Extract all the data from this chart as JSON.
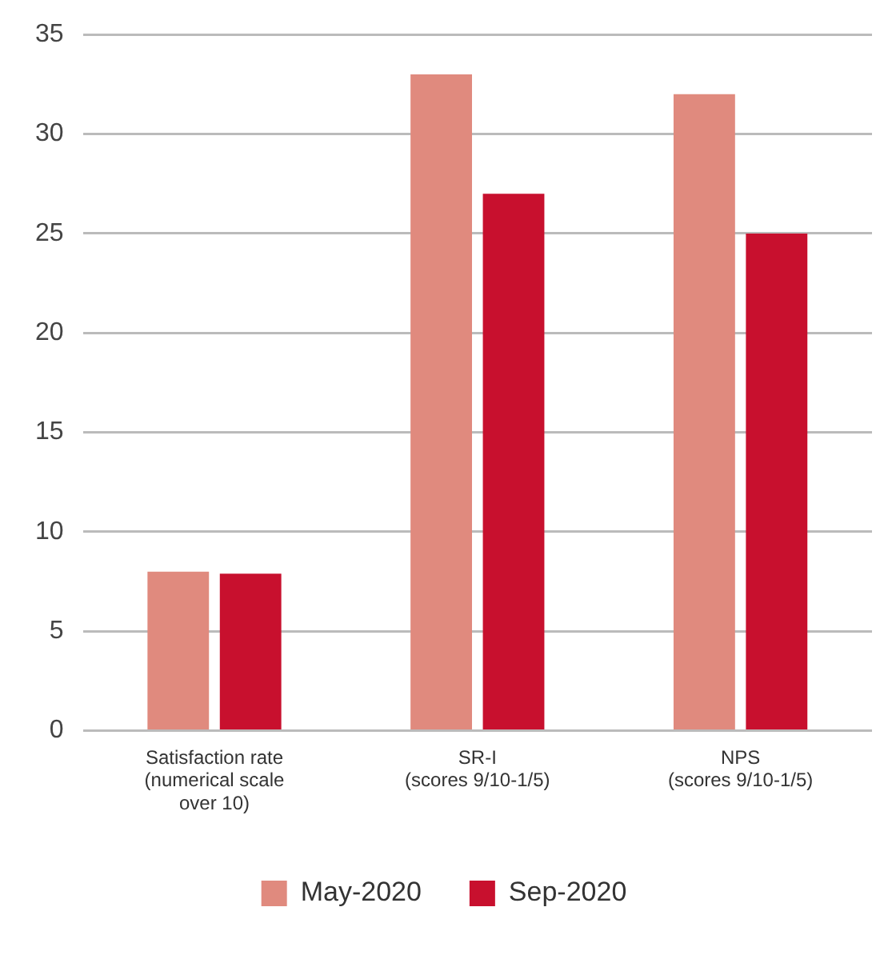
{
  "chart_data": {
    "type": "bar",
    "categories": [
      "Satisfaction rate\n(numerical scale\nover 10)",
      "SR-I\n(scores 9/10-1/5)",
      "NPS\n(scores 9/10-1/5)"
    ],
    "series": [
      {
        "name": "May-2020",
        "color": "#e08a7e",
        "values": [
          8,
          33,
          32
        ]
      },
      {
        "name": "Sep-2020",
        "color": "#c8102e",
        "values": [
          7.9,
          27,
          25
        ]
      }
    ],
    "ylim": [
      0,
      35
    ],
    "yticks": [
      0,
      5,
      10,
      15,
      20,
      25,
      30,
      35
    ],
    "grid": "y",
    "legend": "bottom"
  }
}
